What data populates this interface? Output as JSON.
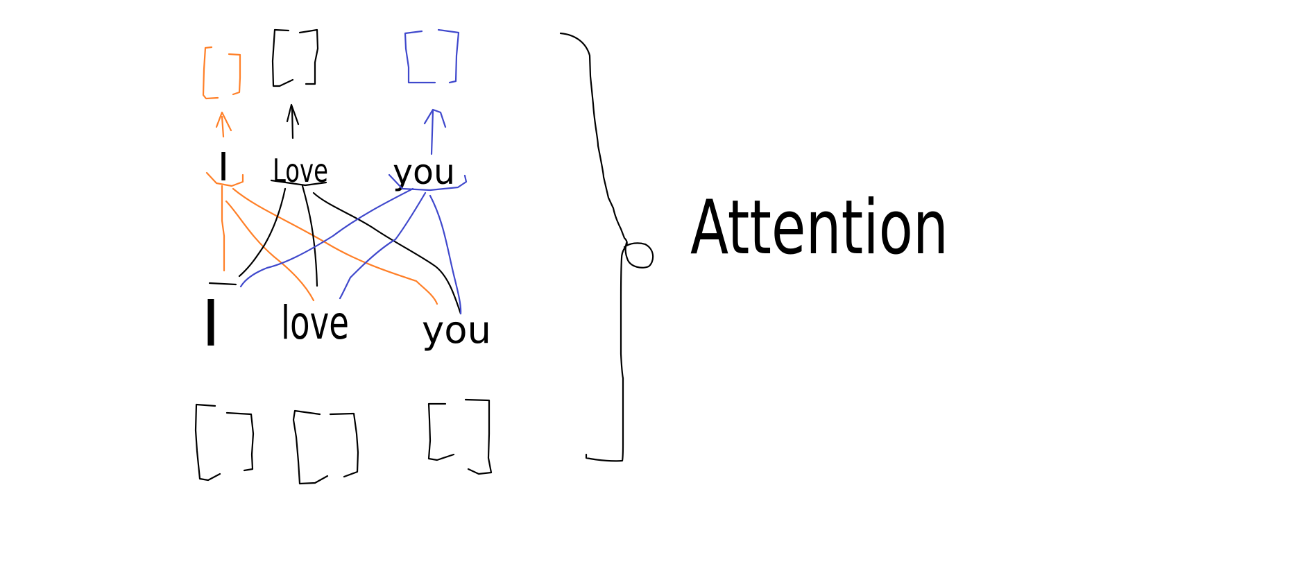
{
  "diagram": {
    "top_words": [
      "I",
      "Love",
      "you"
    ],
    "bottom_words": [
      "I",
      "love",
      "you"
    ],
    "label": "Attention"
  },
  "colors": {
    "ink": "#000000",
    "word_i": "#ff7f27",
    "word_you": "#3f48cc",
    "background": "#ffffff"
  }
}
